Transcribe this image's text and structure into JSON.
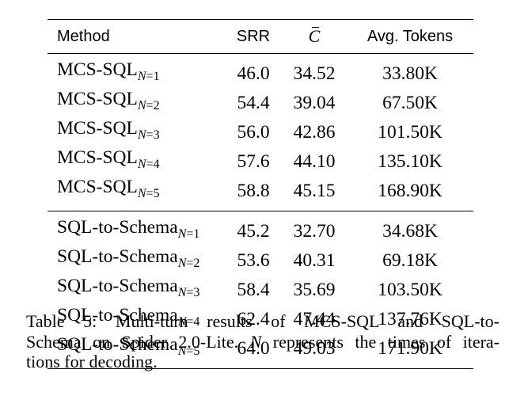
{
  "table": {
    "headers": {
      "method": "Method",
      "srr": "SRR",
      "c_bar": "C",
      "avg_tokens": "Avg. Tokens"
    },
    "groups": [
      {
        "rows": [
          {
            "method": "MCS-SQL",
            "sub_var": "N",
            "sub_eq": "=1",
            "srr": "46.0",
            "c_bar": "34.52",
            "avg_tokens": "33.80K"
          },
          {
            "method": "MCS-SQL",
            "sub_var": "N",
            "sub_eq": "=2",
            "srr": "54.4",
            "c_bar": "39.04",
            "avg_tokens": "67.50K"
          },
          {
            "method": "MCS-SQL",
            "sub_var": "N",
            "sub_eq": "=3",
            "srr": "56.0",
            "c_bar": "42.86",
            "avg_tokens": "101.50K"
          },
          {
            "method": "MCS-SQL",
            "sub_var": "N",
            "sub_eq": "=4",
            "srr": "57.6",
            "c_bar": "44.10",
            "avg_tokens": "135.10K"
          },
          {
            "method": "MCS-SQL",
            "sub_var": "N",
            "sub_eq": "=5",
            "srr": "58.8",
            "c_bar": "45.15",
            "avg_tokens": "168.90K"
          }
        ]
      },
      {
        "rows": [
          {
            "method": "SQL-to-Schema",
            "sub_var": "N",
            "sub_eq": "=1",
            "srr": "45.2",
            "c_bar": "32.70",
            "avg_tokens": "34.68K"
          },
          {
            "method": "SQL-to-Schema",
            "sub_var": "N",
            "sub_eq": "=2",
            "srr": "53.6",
            "c_bar": "40.31",
            "avg_tokens": "69.18K"
          },
          {
            "method": "SQL-to-Schema",
            "sub_var": "N",
            "sub_eq": "=3",
            "srr": "58.4",
            "c_bar": "35.69",
            "avg_tokens": "103.50K"
          },
          {
            "method": "SQL-to-Schema",
            "sub_var": "N",
            "sub_eq": "=4",
            "srr": "62.4",
            "c_bar": "47.44",
            "avg_tokens": "137.76K"
          },
          {
            "method": "SQL-to-Schema",
            "sub_var": "N",
            "sub_eq": "=5",
            "srr": "64.0",
            "c_bar": "49.03",
            "avg_tokens": "171.90K"
          }
        ]
      }
    ]
  },
  "caption": {
    "line1": "Table 5: Multi-turn results of MCS-SQL and SQL-to-",
    "line2": "Schema on Spider 2.0-Lite.",
    "line2_var": "N",
    "line2_rest": "represents the times of itera-",
    "line3": "tions for decoding."
  }
}
